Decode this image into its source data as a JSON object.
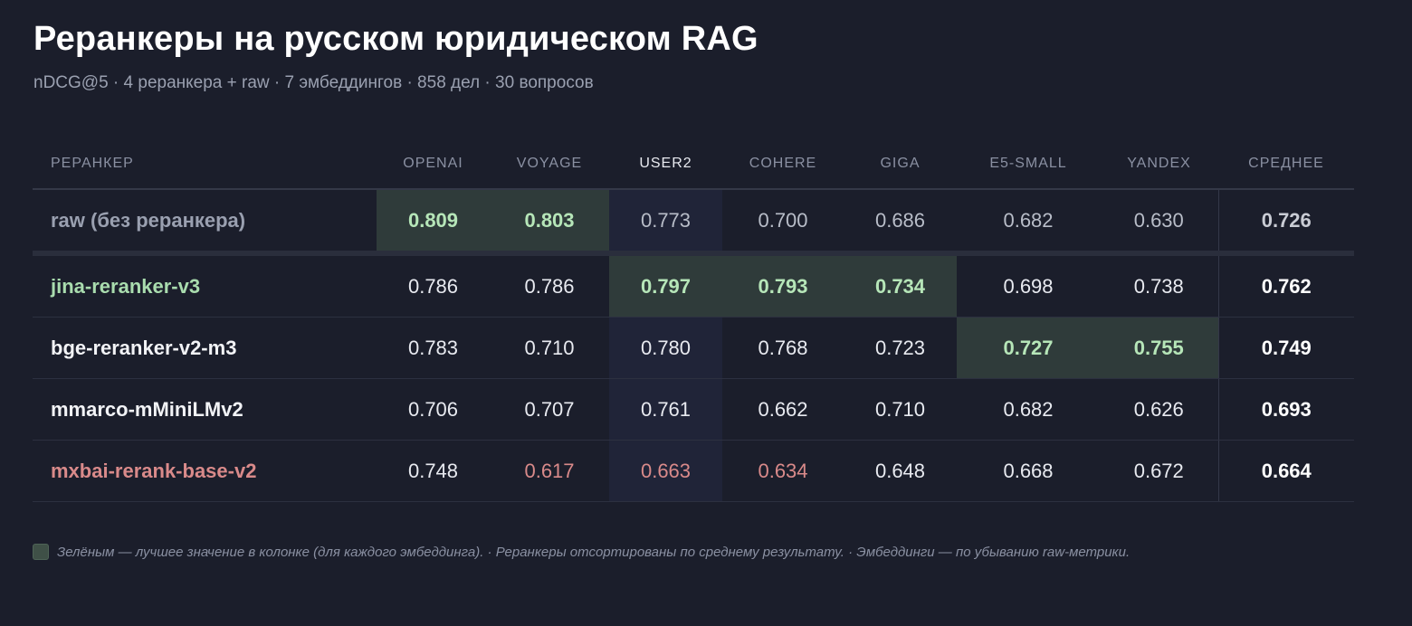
{
  "title": "Реранкеры на русском юридическом RAG",
  "subtitle": "nDCG@5 · 4 реранкера + raw · 7 эмбеддингов · 858 дел · 30 вопросов",
  "legend_text": "Зелёным — лучшее значение в колонке (для каждого эмбеддинга).  ·  Реранкеры отсортированы по среднему результату.  ·  Эмбеддинги — по убыванию raw-метрики.",
  "colors": {
    "background": "#1b1e2b",
    "best_cell": "#2f3b3a",
    "best_text": "#b6e6b8",
    "worse_text": "#d98a8a",
    "highlight_column": "#202438"
  },
  "chart_data": {
    "type": "table",
    "metric": "nDCG@5",
    "columns": [
      "РЕРАНКЕР",
      "OPENAI",
      "VOYAGE",
      "USER2",
      "COHERE",
      "GIGA",
      "E5-SMALL",
      "YANDEX",
      "СРЕДНЕЕ"
    ],
    "highlight_column": "USER2",
    "rows": [
      {
        "name": "raw (без реранкера)",
        "style": "raw",
        "values": [
          "0.809",
          "0.803",
          "0.773",
          "0.700",
          "0.686",
          "0.682",
          "0.630"
        ],
        "average": "0.726",
        "best": [
          0,
          1
        ],
        "worse": []
      },
      {
        "name": "jina-reranker-v3",
        "style": "good",
        "values": [
          "0.786",
          "0.786",
          "0.797",
          "0.793",
          "0.734",
          "0.698",
          "0.738"
        ],
        "average": "0.762",
        "best": [
          2,
          3,
          4
        ],
        "worse": []
      },
      {
        "name": "bge-reranker-v2-m3",
        "style": "normal",
        "values": [
          "0.783",
          "0.710",
          "0.780",
          "0.768",
          "0.723",
          "0.727",
          "0.755"
        ],
        "average": "0.749",
        "best": [
          5,
          6
        ],
        "worse": []
      },
      {
        "name": "mmarco-mMiniLMv2",
        "style": "normal",
        "values": [
          "0.706",
          "0.707",
          "0.761",
          "0.662",
          "0.710",
          "0.682",
          "0.626"
        ],
        "average": "0.693",
        "best": [],
        "worse": []
      },
      {
        "name": "mxbai-rerank-base-v2",
        "style": "bad",
        "values": [
          "0.748",
          "0.617",
          "0.663",
          "0.634",
          "0.648",
          "0.668",
          "0.672"
        ],
        "average": "0.664",
        "best": [],
        "worse": [
          1,
          2,
          3
        ]
      }
    ]
  }
}
